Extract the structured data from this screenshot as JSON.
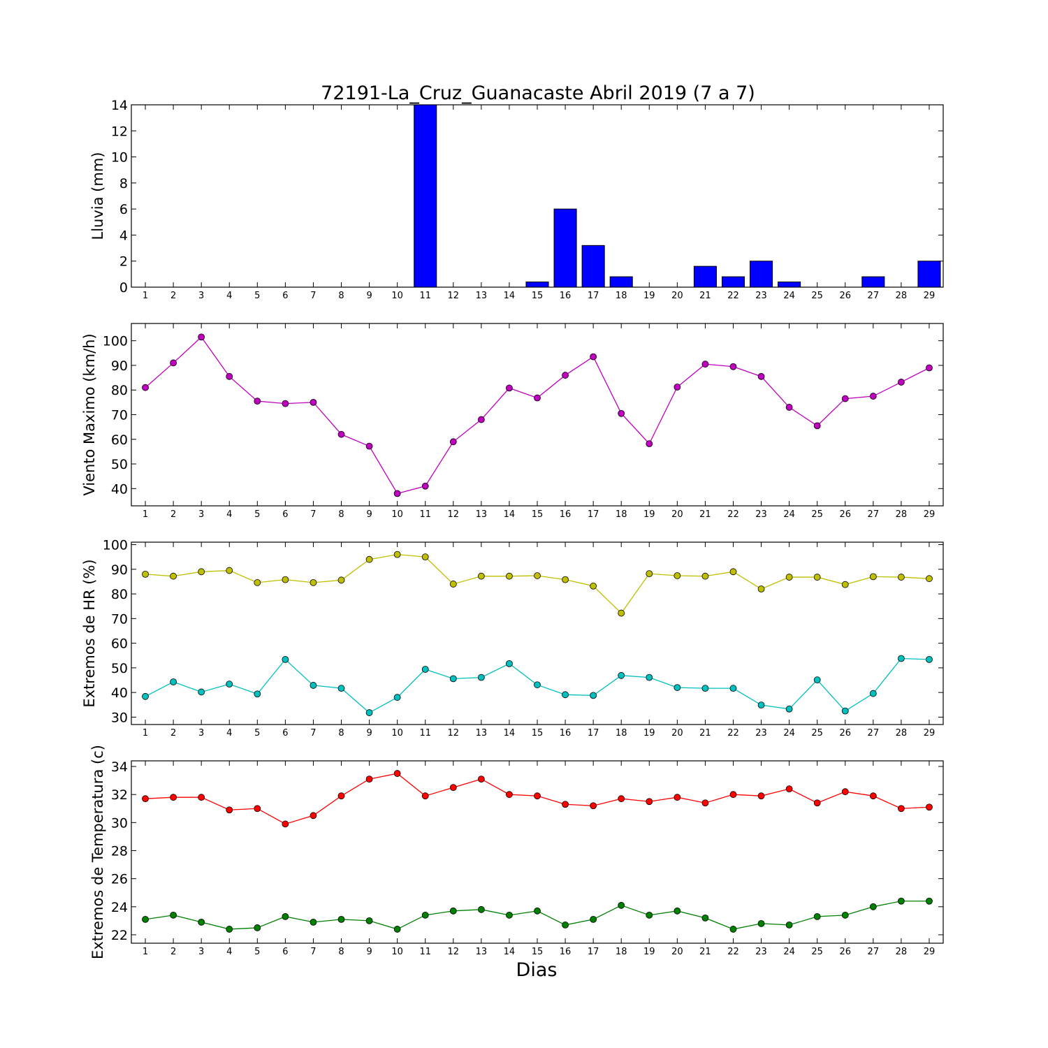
{
  "title": "72191-La_Cruz_Guanacaste Abril 2019  (7 a 7)",
  "xlabel": "Dias",
  "chart_data": [
    {
      "type": "bar",
      "ylabel": "Lluvia (mm)",
      "ylim": [
        0,
        14
      ],
      "yticks": [
        0,
        2,
        4,
        6,
        8,
        10,
        12,
        14
      ],
      "x": [
        1,
        2,
        3,
        4,
        5,
        6,
        7,
        8,
        9,
        10,
        11,
        12,
        13,
        14,
        15,
        16,
        17,
        18,
        19,
        20,
        21,
        22,
        23,
        24,
        25,
        26,
        27,
        28,
        29
      ],
      "xlim": [
        0.5,
        29.5
      ],
      "values": [
        0,
        0,
        0,
        0,
        0,
        0,
        0,
        0,
        0,
        0,
        14,
        0,
        0,
        0,
        0.4,
        6,
        3.2,
        0.8,
        0,
        0,
        1.6,
        0.8,
        2,
        0.4,
        0,
        0,
        0.8,
        0,
        2
      ],
      "color": "#0000ff"
    },
    {
      "type": "line",
      "ylabel": "Viento Maximo (km/h)",
      "ylim": [
        33,
        107
      ],
      "yticks": [
        40,
        50,
        60,
        70,
        80,
        90,
        100
      ],
      "x": [
        1,
        2,
        3,
        4,
        5,
        6,
        7,
        8,
        9,
        10,
        11,
        12,
        13,
        14,
        15,
        16,
        17,
        18,
        19,
        20,
        21,
        22,
        23,
        24,
        25,
        26,
        27,
        28,
        29
      ],
      "xlim": [
        0.5,
        29.5
      ],
      "series": [
        {
          "color": "#bf00bf",
          "values": [
            81,
            91,
            101.5,
            85.5,
            75.5,
            74.5,
            75,
            62,
            57.2,
            38,
            41,
            59,
            68,
            80.8,
            76.8,
            86,
            93.5,
            70.5,
            58.2,
            81.2,
            90.5,
            89.5,
            85.5,
            73,
            65.5,
            76.5,
            77.5,
            83.2,
            89
          ]
        }
      ]
    },
    {
      "type": "line",
      "ylabel": "Extremos de HR (%)",
      "ylim": [
        27,
        101
      ],
      "yticks": [
        30,
        40,
        50,
        60,
        70,
        80,
        90,
        100
      ],
      "x": [
        1,
        2,
        3,
        4,
        5,
        6,
        7,
        8,
        9,
        10,
        11,
        12,
        13,
        14,
        15,
        16,
        17,
        18,
        19,
        20,
        21,
        22,
        23,
        24,
        25,
        26,
        27,
        28,
        29
      ],
      "xlim": [
        0.5,
        29.5
      ],
      "series": [
        {
          "color": "#bfbf00",
          "values": [
            88,
            87.2,
            89,
            89.5,
            84.6,
            85.8,
            84.6,
            85.6,
            94,
            96,
            95,
            84,
            87.2,
            87.2,
            87.4,
            85.8,
            83.2,
            72.2,
            88.2,
            87.4,
            87.2,
            89,
            82,
            86.8,
            86.8,
            83.8,
            87,
            86.8,
            86.2
          ]
        },
        {
          "color": "#00bfbf",
          "values": [
            38.4,
            44.3,
            40.2,
            43.4,
            39.4,
            53.4,
            42.9,
            41.7,
            31.8,
            38,
            49.4,
            45.6,
            46.1,
            51.7,
            43.1,
            39.1,
            38.8,
            46.9,
            46.1,
            42,
            41.7,
            41.7,
            34.9,
            33.3,
            45.1,
            32.5,
            39.6,
            53.8,
            53.4
          ]
        }
      ]
    },
    {
      "type": "line",
      "ylabel": "Extremos de Temperatura (c)",
      "ylim": [
        21.4,
        34.4
      ],
      "yticks": [
        22,
        24,
        26,
        28,
        30,
        32,
        34
      ],
      "x": [
        1,
        2,
        3,
        4,
        5,
        6,
        7,
        8,
        9,
        10,
        11,
        12,
        13,
        14,
        15,
        16,
        17,
        18,
        19,
        20,
        21,
        22,
        23,
        24,
        25,
        26,
        27,
        28,
        29
      ],
      "xlim": [
        0.5,
        29.5
      ],
      "series": [
        {
          "color": "#ff0000",
          "values": [
            31.7,
            31.8,
            31.8,
            30.9,
            31,
            29.9,
            30.5,
            31.9,
            33.1,
            33.5,
            31.9,
            32.5,
            33.1,
            32,
            31.9,
            31.3,
            31.2,
            31.7,
            31.5,
            31.8,
            31.4,
            32,
            31.9,
            32.4,
            31.4,
            32.2,
            31.9,
            31,
            31.1
          ]
        },
        {
          "color": "#008000",
          "values": [
            23.1,
            23.4,
            22.9,
            22.4,
            22.5,
            23.3,
            22.9,
            23.1,
            23,
            22.4,
            23.4,
            23.7,
            23.8,
            23.4,
            23.7,
            22.7,
            23.1,
            24.1,
            23.4,
            23.7,
            23.2,
            22.4,
            22.8,
            22.7,
            23.3,
            23.4,
            24,
            24.4,
            24.4
          ]
        }
      ]
    }
  ]
}
